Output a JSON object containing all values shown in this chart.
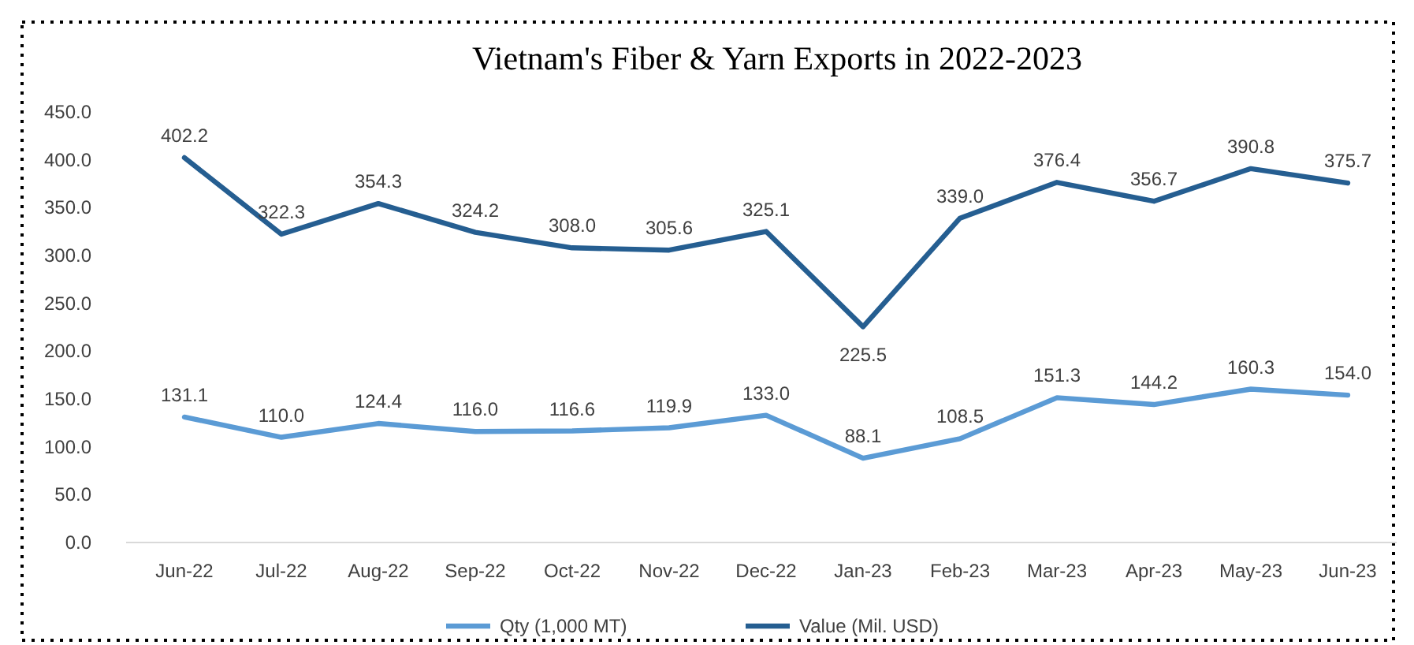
{
  "chart_data": {
    "type": "line",
    "title": "Vietnam's Fiber & Yarn Exports in 2022-2023",
    "categories": [
      "Jun-22",
      "Jul-22",
      "Aug-22",
      "Sep-22",
      "Oct-22",
      "Nov-22",
      "Dec-22",
      "Jan-23",
      "Feb-23",
      "Mar-23",
      "Apr-23",
      "May-23",
      "Jun-23"
    ],
    "series": [
      {
        "name": "Qty (1,000 MT)",
        "color": "#5b9bd5",
        "values": [
          131.1,
          110.0,
          124.4,
          116.0,
          116.6,
          119.9,
          133.0,
          88.1,
          108.5,
          151.3,
          144.2,
          160.3,
          154.0
        ],
        "value_labels": [
          "131.1",
          "110.0",
          "124.4",
          "116.0",
          "116.6",
          "119.9",
          "133.0",
          "88.1",
          "108.5",
          "151.3",
          "144.2",
          "160.3",
          "154.0"
        ]
      },
      {
        "name": "Value (Mil. USD)",
        "color": "#255e91",
        "values": [
          402.2,
          322.3,
          354.3,
          324.2,
          308.0,
          305.6,
          325.1,
          225.5,
          339.0,
          376.4,
          356.7,
          390.8,
          375.7
        ],
        "value_labels": [
          "402.2",
          "322.3",
          "354.3",
          "324.2",
          "308.0",
          "305.6",
          "325.1",
          "225.5",
          "339.0",
          "376.4",
          "356.7",
          "390.8",
          "375.7"
        ]
      }
    ],
    "ylim": [
      0,
      450
    ],
    "yticks": [
      {
        "value": 0,
        "label": "0.0"
      },
      {
        "value": 50,
        "label": "50.0"
      },
      {
        "value": 100,
        "label": "100.0"
      },
      {
        "value": 150,
        "label": "150.0"
      },
      {
        "value": 200,
        "label": "200.0"
      },
      {
        "value": 250,
        "label": "250.0"
      },
      {
        "value": 300,
        "label": "300.0"
      },
      {
        "value": 350,
        "label": "350.0"
      },
      {
        "value": 400,
        "label": "400.0"
      },
      {
        "value": 450,
        "label": "450.0"
      }
    ],
    "grid": false,
    "legend": "bottom",
    "marker": "none",
    "line_style": "solid"
  }
}
